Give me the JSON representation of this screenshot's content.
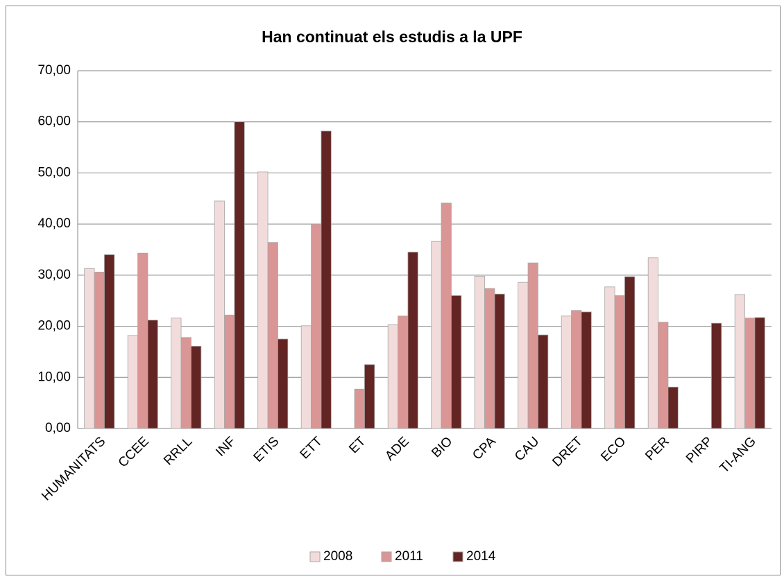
{
  "chart_data": {
    "type": "bar",
    "title": "Han continuat els estudis a la UPF",
    "categories": [
      "HUMANITATS",
      "CCEE",
      "RRLL",
      "INF",
      "ETIS",
      "ETT",
      "ET",
      "ADE",
      "BIO",
      "CPA",
      "CAU",
      "DRET",
      "ECO",
      "PER",
      "PIRP",
      "TI-ANG"
    ],
    "series": [
      {
        "name": "2008",
        "color": "#f2dcdb",
        "values": [
          31.3,
          18.2,
          21.6,
          44.5,
          50.2,
          20.1,
          null,
          20.3,
          36.6,
          29.8,
          28.6,
          22.0,
          27.7,
          33.4,
          null,
          26.2
        ]
      },
      {
        "name": "2011",
        "color": "#d99694",
        "values": [
          30.6,
          34.3,
          17.8,
          22.2,
          36.4,
          40.0,
          7.7,
          22.0,
          44.1,
          27.4,
          32.4,
          23.1,
          26.0,
          20.8,
          null,
          21.6
        ]
      },
      {
        "name": "2014",
        "color": "#632523",
        "values": [
          34.0,
          21.2,
          16.1,
          60.0,
          17.5,
          58.2,
          12.5,
          34.5,
          26.0,
          26.3,
          18.3,
          22.8,
          29.7,
          8.1,
          20.6,
          21.7
        ]
      }
    ],
    "ylim": [
      0,
      70
    ],
    "yticks": [
      {
        "value": 0,
        "label": "0,00"
      },
      {
        "value": 10,
        "label": "10,00"
      },
      {
        "value": 20,
        "label": "20,00"
      },
      {
        "value": 30,
        "label": "30,00"
      },
      {
        "value": 40,
        "label": "40,00"
      },
      {
        "value": 50,
        "label": "50,00"
      },
      {
        "value": 60,
        "label": "60,00"
      },
      {
        "value": 70,
        "label": "70,00"
      }
    ],
    "grid": true,
    "legend": "bottom"
  }
}
